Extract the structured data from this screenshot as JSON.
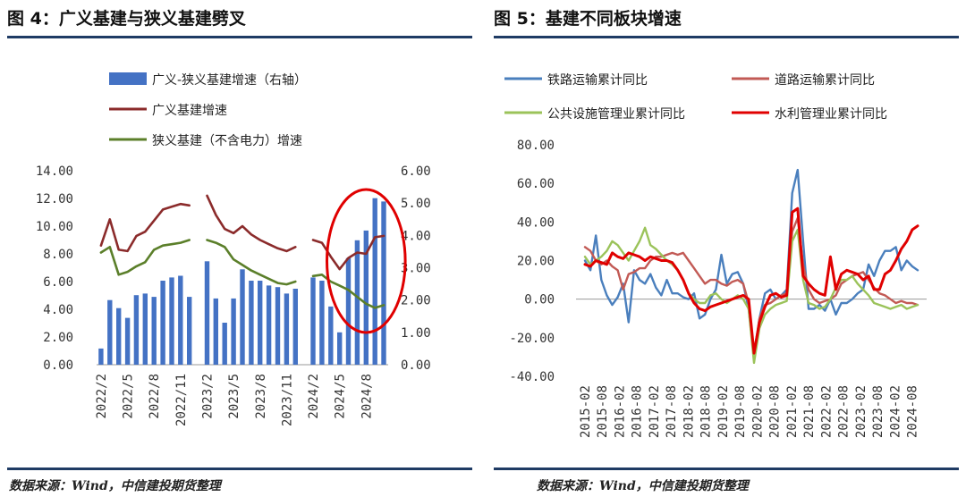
{
  "left_panel": {
    "title": "图 4：广义基建与狭义基建劈叉",
    "source": "数据来源：Wind，中信建投期货整理"
  },
  "right_panel": {
    "title": "图 5：基建不同板块增速",
    "source": "数据来源：Wind，中信建投期货整理"
  },
  "colors": {
    "rule": "#1f3b64",
    "bar": "#4472c4",
    "broad": "#8b2b2b",
    "narrow": "#5b7f2a",
    "highlight_ring": "#e00000",
    "rail": "#4a7fbd",
    "road": "#c25a55",
    "public": "#9bc35a",
    "water": "#e00000"
  },
  "chart_data": [
    {
      "type": "bar",
      "legend": [
        "广义-狭义基建增速（右轴）",
        "广义基建增速",
        "狭义基建（不含电力）增速"
      ],
      "x_tick_labels": [
        "2022/2",
        "2022/5",
        "2022/8",
        "2022/11",
        "2023/2",
        "2023/5",
        "2023/8",
        "2023/11",
        "2024/2",
        "2024/5",
        "2024/8"
      ],
      "left_axis": {
        "ylim": [
          0,
          14
        ],
        "ticks": [
          "0.00",
          "2.00",
          "4.00",
          "6.00",
          "8.00",
          "10.00",
          "12.00",
          "14.00"
        ]
      },
      "right_axis": {
        "ylim": [
          0,
          6
        ],
        "ticks": [
          "0.00",
          "1.00",
          "2.00",
          "3.00",
          "4.00",
          "5.00",
          "6.00"
        ]
      },
      "periods": [
        "2022/2",
        "2022/3",
        "2022/4",
        "2022/5",
        "2022/6",
        "2022/7",
        "2022/8",
        "2022/9",
        "2022/10",
        "2022/11",
        "2022/12",
        "2023/1",
        "2023/2",
        "2023/3",
        "2023/4",
        "2023/5",
        "2023/6",
        "2023/7",
        "2023/8",
        "2023/9",
        "2023/10",
        "2023/11",
        "2023/12",
        "2024/1",
        "2024/2",
        "2024/3",
        "2024/4",
        "2024/5",
        "2024/6",
        "2024/7",
        "2024/8",
        "2024/9",
        "2024/10"
      ],
      "series": [
        {
          "name": "广义-狭义基建增速（右轴）",
          "kind": "bar",
          "axis": "right",
          "values": [
            0.5,
            2.0,
            1.75,
            1.45,
            2.15,
            2.2,
            2.1,
            2.6,
            2.7,
            2.75,
            2.1,
            null,
            3.2,
            2.05,
            1.3,
            2.05,
            2.95,
            2.6,
            2.6,
            2.45,
            2.4,
            2.2,
            2.35,
            null,
            2.7,
            2.6,
            1.8,
            1.0,
            3.3,
            3.85,
            4.15,
            5.15,
            5.05
          ]
        },
        {
          "name": "广义基建增速",
          "kind": "line",
          "axis": "left",
          "values": [
            8.6,
            10.5,
            8.3,
            8.2,
            9.3,
            9.6,
            10.4,
            11.2,
            11.4,
            11.6,
            11.5,
            null,
            12.2,
            10.8,
            9.8,
            9.5,
            10.0,
            9.4,
            9.0,
            8.7,
            8.4,
            8.2,
            8.5,
            null,
            9.0,
            8.8,
            7.8,
            6.9,
            7.7,
            8.1,
            8.0,
            9.2,
            9.3
          ]
        },
        {
          "name": "狭义基建（不含电力）增速",
          "kind": "line",
          "axis": "left",
          "values": [
            8.1,
            8.5,
            6.5,
            6.7,
            7.1,
            7.4,
            8.3,
            8.6,
            8.7,
            8.8,
            9.0,
            null,
            9.0,
            8.8,
            8.5,
            7.6,
            7.2,
            6.8,
            6.5,
            6.2,
            5.9,
            5.8,
            6.0,
            null,
            6.4,
            6.5,
            6.0,
            5.7,
            5.4,
            4.9,
            4.4,
            4.1,
            4.3
          ]
        }
      ]
    },
    {
      "type": "line",
      "legend": [
        "铁路运输累计同比",
        "道路运输累计同比",
        "公共设施管理业累计同比",
        "水利管理业累计同比"
      ],
      "x_tick_labels": [
        "2015-02",
        "2015-08",
        "2016-02",
        "2016-08",
        "2017-02",
        "2017-08",
        "2018-02",
        "2018-08",
        "2019-02",
        "2019-08",
        "2020-02",
        "2020-08",
        "2021-02",
        "2021-08",
        "2022-02",
        "2022-08",
        "2023-02",
        "2023-08",
        "2024-02",
        "2024-08"
      ],
      "ylim": [
        -40,
        80
      ],
      "y_ticks": [
        "-40.00",
        "-20.00",
        "0.00",
        "20.00",
        "40.00",
        "60.00",
        "80.00"
      ],
      "x_start": "2015-02",
      "x_end": "2024-10",
      "series": [
        {
          "name": "铁路运输累计同比",
          "values": [
            20,
            15,
            33,
            10,
            2,
            -3,
            1,
            8,
            -12,
            15,
            10,
            8,
            13,
            6,
            2,
            10,
            3,
            3,
            1,
            0,
            3,
            -10,
            -8,
            0,
            5,
            23,
            8,
            13,
            14,
            8,
            -5,
            -30,
            -10,
            3,
            5,
            0,
            2,
            5,
            55,
            67,
            30,
            -5,
            -5,
            -3,
            -6,
            0,
            -8,
            -2,
            -2,
            0,
            3,
            5,
            18,
            12,
            20,
            25,
            25,
            27,
            15,
            20,
            17,
            15
          ]
        },
        {
          "name": "道路运输累计同比",
          "values": [
            27,
            25,
            20,
            18,
            20,
            17,
            15,
            5,
            13,
            14,
            16,
            16,
            20,
            22,
            22,
            23,
            24,
            23,
            24,
            20,
            16,
            12,
            8,
            10,
            10,
            8,
            7,
            9,
            10,
            8,
            -2,
            -28,
            -10,
            -3,
            -2,
            0,
            2,
            3,
            35,
            42,
            18,
            5,
            0,
            -2,
            -1,
            0,
            2,
            8,
            10,
            12,
            13,
            14,
            10,
            6,
            3,
            2,
            0,
            -2,
            -1,
            -2,
            -2,
            -3
          ]
        },
        {
          "name": "公共设施管理业累计同比",
          "values": [
            22,
            18,
            20,
            22,
            25,
            30,
            28,
            24,
            20,
            25,
            30,
            37,
            28,
            26,
            23,
            20,
            18,
            15,
            10,
            3,
            0,
            -2,
            -2,
            2,
            3,
            0,
            -2,
            0,
            2,
            0,
            -5,
            -33,
            -15,
            -8,
            -5,
            -3,
            -2,
            -1,
            30,
            36,
            10,
            -2,
            -3,
            -5,
            -4,
            0,
            6,
            10,
            10,
            12,
            8,
            5,
            2,
            -2,
            -3,
            -4,
            -5,
            -4,
            -3,
            -5,
            -4,
            -3
          ]
        },
        {
          "name": "水利管理业累计同比",
          "values": [
            18,
            17,
            20,
            19,
            18,
            24,
            22,
            21,
            24,
            23,
            22,
            20,
            22,
            21,
            20,
            20,
            19,
            15,
            10,
            3,
            -2,
            -5,
            -6,
            -4,
            -3,
            -2,
            -1,
            0,
            1,
            2,
            0,
            -28,
            -12,
            -4,
            2,
            3,
            1,
            2,
            45,
            47,
            12,
            8,
            5,
            3,
            2,
            22,
            5,
            13,
            15,
            14,
            13,
            10,
            12,
            5,
            5,
            13,
            15,
            20,
            26,
            30,
            36,
            38
          ]
        }
      ]
    }
  ]
}
